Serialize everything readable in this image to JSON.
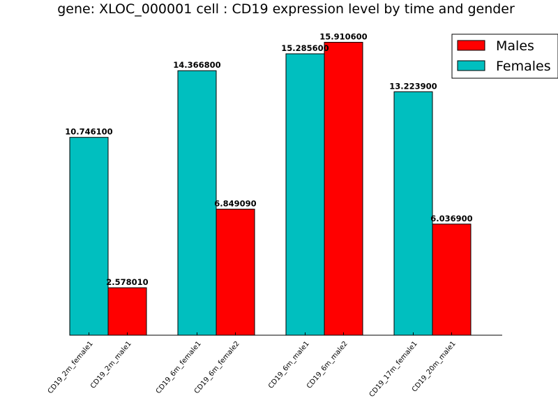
{
  "chart_data": {
    "type": "bar",
    "title": "gene: XLOC_000001 cell : CD19 expression level by time and gender",
    "xlabel": "",
    "ylabel": "",
    "ylim": [
      0,
      16.5
    ],
    "grid": false,
    "legend_position": "top-right",
    "groups": 4,
    "bars": [
      {
        "label": "CD19_2m_female1",
        "series": "Females",
        "value": 10.7461,
        "value_text": "10.746100"
      },
      {
        "label": "CD19_2m_male1",
        "series": "Males",
        "value": 2.57801,
        "value_text": "2.578010"
      },
      {
        "label": "CD19_6m_female1",
        "series": "Females",
        "value": 14.3668,
        "value_text": "14.366800"
      },
      {
        "label": "CD19_6m_female2",
        "series": "Males",
        "value": 6.84909,
        "value_text": "6.849090"
      },
      {
        "label": "CD19_6m_male1",
        "series": "Females",
        "value": 15.2856,
        "value_text": "15.285600"
      },
      {
        "label": "CD19_6m_male2",
        "series": "Males",
        "value": 15.9106,
        "value_text": "15.910600"
      },
      {
        "label": "CD19_17m_female1",
        "series": "Females",
        "value": 13.2239,
        "value_text": "13.223900"
      },
      {
        "label": "CD19_20m_male1",
        "series": "Males",
        "value": 6.0369,
        "value_text": "6.036900"
      }
    ],
    "legend": [
      {
        "name": "Males",
        "color": "#ff0000"
      },
      {
        "name": "Females",
        "color": "#00bfbf"
      }
    ],
    "colors": {
      "Males": "#ff0000",
      "Females": "#00bfbf"
    }
  }
}
